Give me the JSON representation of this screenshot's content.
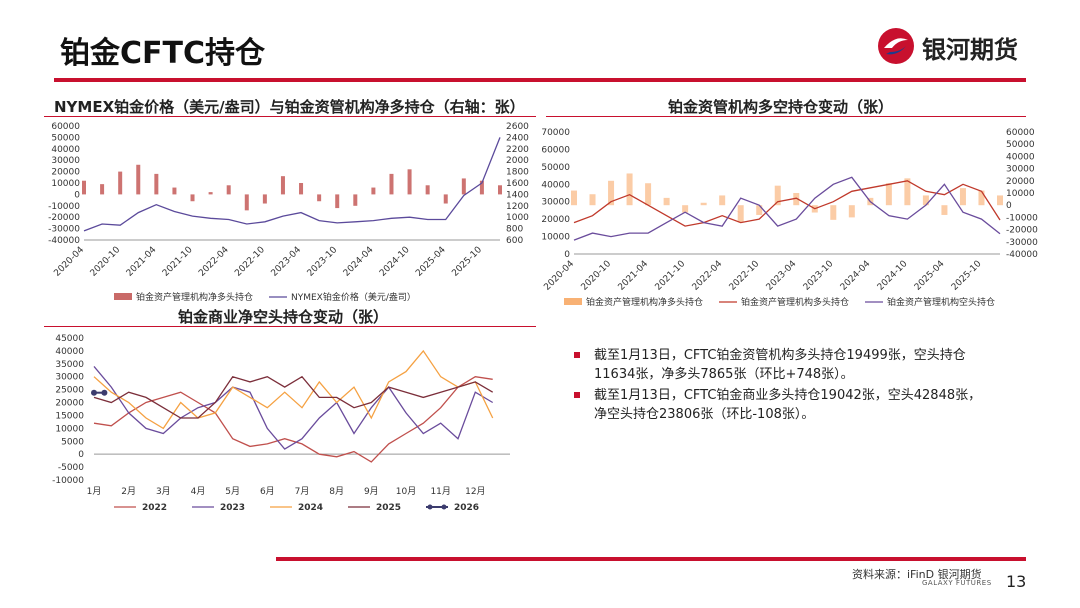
{
  "header": {
    "title": "铂金CFTC持仓",
    "brand": "银河期货"
  },
  "chart_data": [
    {
      "id": "chart1",
      "type": "bar+line",
      "title": "NYMEX铂金价格（美元/盎司）与铂金资管机构净多持仓（右轴：张）",
      "x_ticks": [
        "2020-04",
        "2020-10",
        "2021-04",
        "2021-10",
        "2022-04",
        "2022-10",
        "2023-04",
        "2023-10",
        "2024-04",
        "2024-10",
        "2025-04",
        "2025-10"
      ],
      "y_left": {
        "min": -40000,
        "max": 60000,
        "step": 10000
      },
      "y_right": {
        "min": 600,
        "max": 2600,
        "step": 200
      },
      "series": [
        {
          "name": "铂金资产管理机构净多头持仓",
          "kind": "bar",
          "color": "#c0504d",
          "axis": "left",
          "x": [
            "2020-04",
            "2020-07",
            "2020-10",
            "2021-01",
            "2021-04",
            "2021-07",
            "2021-10",
            "2022-01",
            "2022-04",
            "2022-07",
            "2022-10",
            "2023-01",
            "2023-04",
            "2023-07",
            "2023-10",
            "2024-01",
            "2024-04",
            "2024-07",
            "2024-10",
            "2025-01",
            "2025-04",
            "2025-07",
            "2025-10",
            "2026-01"
          ],
          "values": [
            12000,
            9000,
            20000,
            26000,
            18000,
            6000,
            -6000,
            2000,
            8000,
            -14000,
            -8000,
            16000,
            10000,
            -6000,
            -12000,
            -10000,
            6000,
            18000,
            22000,
            8000,
            -8000,
            14000,
            12000,
            8000
          ]
        },
        {
          "name": "NYMEX铂金价格（美元/盎司）",
          "kind": "line",
          "color": "#5b4a9b",
          "axis": "right",
          "x": [
            "2020-04",
            "2020-07",
            "2020-10",
            "2021-01",
            "2021-04",
            "2021-07",
            "2021-10",
            "2022-01",
            "2022-04",
            "2022-07",
            "2022-10",
            "2023-01",
            "2023-04",
            "2023-07",
            "2023-10",
            "2024-01",
            "2024-04",
            "2024-07",
            "2024-10",
            "2025-01",
            "2025-04",
            "2025-07",
            "2025-10",
            "2026-01"
          ],
          "values": [
            760,
            880,
            860,
            1080,
            1220,
            1100,
            1020,
            980,
            960,
            880,
            920,
            1020,
            1080,
            940,
            900,
            920,
            940,
            980,
            1000,
            960,
            960,
            1380,
            1600,
            2400
          ]
        }
      ]
    },
    {
      "id": "chart2",
      "type": "area+line",
      "title": "铂金资管机构多空持仓变动（张）",
      "x_ticks": [
        "2020-04",
        "2020-10",
        "2021-04",
        "2021-10",
        "2022-04",
        "2022-10",
        "2023-04",
        "2023-10",
        "2024-04",
        "2024-10",
        "2025-04",
        "2025-10"
      ],
      "y_left": {
        "min": 0,
        "max": 70000,
        "step": 10000
      },
      "y_right": {
        "min": -40000,
        "max": 60000,
        "step": 10000
      },
      "series": [
        {
          "name": "铂金资产管理机构净多头持仓",
          "kind": "area",
          "color": "#f7a35c",
          "axis": "right",
          "x": [
            "2020-04",
            "2020-07",
            "2020-10",
            "2021-01",
            "2021-04",
            "2021-07",
            "2021-10",
            "2022-01",
            "2022-04",
            "2022-07",
            "2022-10",
            "2023-01",
            "2023-04",
            "2023-07",
            "2023-10",
            "2024-01",
            "2024-04",
            "2024-07",
            "2024-10",
            "2025-01",
            "2025-04",
            "2025-07",
            "2025-10",
            "2026-01"
          ],
          "values": [
            12000,
            9000,
            20000,
            26000,
            18000,
            6000,
            -6000,
            2000,
            8000,
            -14000,
            -8000,
            16000,
            10000,
            -6000,
            -12000,
            -10000,
            6000,
            18000,
            22000,
            8000,
            -8000,
            14000,
            12000,
            8000
          ]
        },
        {
          "name": "铂金资产管理机构多头持仓",
          "kind": "line",
          "color": "#c0392b",
          "axis": "left",
          "x": [
            "2020-04",
            "2020-07",
            "2020-10",
            "2021-01",
            "2021-04",
            "2021-07",
            "2021-10",
            "2022-01",
            "2022-04",
            "2022-07",
            "2022-10",
            "2023-01",
            "2023-04",
            "2023-07",
            "2023-10",
            "2024-01",
            "2024-04",
            "2024-07",
            "2024-10",
            "2025-01",
            "2025-04",
            "2025-07",
            "2025-10",
            "2026-01"
          ],
          "values": [
            18000,
            22000,
            30000,
            34000,
            28000,
            22000,
            16000,
            18000,
            22000,
            18000,
            20000,
            30000,
            32000,
            26000,
            30000,
            36000,
            38000,
            40000,
            42000,
            36000,
            34000,
            40000,
            36000,
            19499
          ]
        },
        {
          "name": "铂金资产管理机构空头持仓",
          "kind": "line",
          "color": "#6a4c9c",
          "axis": "left",
          "x": [
            "2020-04",
            "2020-07",
            "2020-10",
            "2021-01",
            "2021-04",
            "2021-07",
            "2021-10",
            "2022-01",
            "2022-04",
            "2022-07",
            "2022-10",
            "2023-01",
            "2023-04",
            "2023-07",
            "2023-10",
            "2024-01",
            "2024-04",
            "2024-07",
            "2024-10",
            "2025-01",
            "2025-04",
            "2025-07",
            "2025-10",
            "2026-01"
          ],
          "values": [
            8000,
            12000,
            10000,
            12000,
            12000,
            18000,
            24000,
            18000,
            16000,
            32000,
            28000,
            16000,
            20000,
            32000,
            40000,
            44000,
            30000,
            22000,
            20000,
            28000,
            40000,
            24000,
            20000,
            11634
          ]
        }
      ]
    },
    {
      "id": "chart3",
      "type": "line",
      "title": "铂金商业净空头持仓变动（张）",
      "x_ticks": [
        "1月",
        "2月",
        "3月",
        "4月",
        "5月",
        "6月",
        "7月",
        "8月",
        "9月",
        "10月",
        "11月",
        "12月"
      ],
      "y": {
        "min": -10000,
        "max": 45000,
        "step": 5000
      },
      "series": [
        {
          "name": "2022",
          "color": "#c0504d",
          "x": [
            1,
            1.5,
            2,
            2.5,
            3,
            3.5,
            4,
            4.5,
            5,
            5.5,
            6,
            6.5,
            7,
            7.5,
            8,
            8.5,
            9,
            9.5,
            10,
            10.5,
            11,
            11.5,
            12,
            12.5
          ],
          "values": [
            12000,
            11000,
            16000,
            20000,
            22000,
            24000,
            20000,
            16000,
            6000,
            3000,
            4000,
            6000,
            4000,
            0,
            -1000,
            1000,
            -3000,
            4000,
            8000,
            12000,
            18000,
            26000,
            30000,
            29000
          ]
        },
        {
          "name": "2023",
          "color": "#6a4c9c",
          "x": [
            1,
            1.5,
            2,
            2.5,
            3,
            3.5,
            4,
            4.5,
            5,
            5.5,
            6,
            6.5,
            7,
            7.5,
            8,
            8.5,
            9,
            9.5,
            10,
            10.5,
            11,
            11.5,
            12,
            12.5
          ],
          "values": [
            34000,
            26000,
            16000,
            10000,
            8000,
            14000,
            18000,
            20000,
            26000,
            24000,
            10000,
            2000,
            6000,
            14000,
            20000,
            8000,
            18000,
            26000,
            16000,
            8000,
            12000,
            6000,
            24000,
            20000
          ]
        },
        {
          "name": "2024",
          "color": "#f5a142",
          "x": [
            1,
            1.5,
            2,
            2.5,
            3,
            3.5,
            4,
            4.5,
            5,
            5.5,
            6,
            6.5,
            7,
            7.5,
            8,
            8.5,
            9,
            9.5,
            10,
            10.5,
            11,
            11.5,
            12,
            12.5
          ],
          "values": [
            30000,
            24000,
            20000,
            14000,
            10000,
            20000,
            14000,
            16000,
            26000,
            22000,
            18000,
            24000,
            18000,
            28000,
            20000,
            26000,
            14000,
            28000,
            32000,
            40000,
            30000,
            26000,
            28000,
            14000
          ]
        },
        {
          "name": "2025",
          "color": "#7b2e3a",
          "x": [
            1,
            1.5,
            2,
            2.5,
            3,
            3.5,
            4,
            4.5,
            5,
            5.5,
            6,
            6.5,
            7,
            7.5,
            8,
            8.5,
            9,
            9.5,
            10,
            10.5,
            11,
            11.5,
            12,
            12.5
          ],
          "values": [
            22000,
            20000,
            24000,
            22000,
            18000,
            14000,
            14000,
            20000,
            30000,
            28000,
            30000,
            26000,
            30000,
            22000,
            22000,
            18000,
            20000,
            26000,
            24000,
            22000,
            24000,
            26000,
            28000,
            24000
          ]
        },
        {
          "name": "2026",
          "color": "#3c3c6e",
          "x": [
            1,
            1.3
          ],
          "values": [
            23806,
            23806
          ],
          "marker": true
        }
      ]
    }
  ],
  "bullets": [
    "截至1月13日，CFTC铂金资管机构多头持仓19499张，空头持仓11634张，净多头7865张（环比+748张）。",
    "截至1月13日，CFTC铂金商业多头持仓19042张，空头42848张，净空头持仓23806张（环比-108张）。"
  ],
  "footer": {
    "source": "资料来源：iFinD 银河期货",
    "english_brand": "GALAXY FUTURES",
    "page_number": "13"
  },
  "colors": {
    "accent": "#c8102e"
  }
}
